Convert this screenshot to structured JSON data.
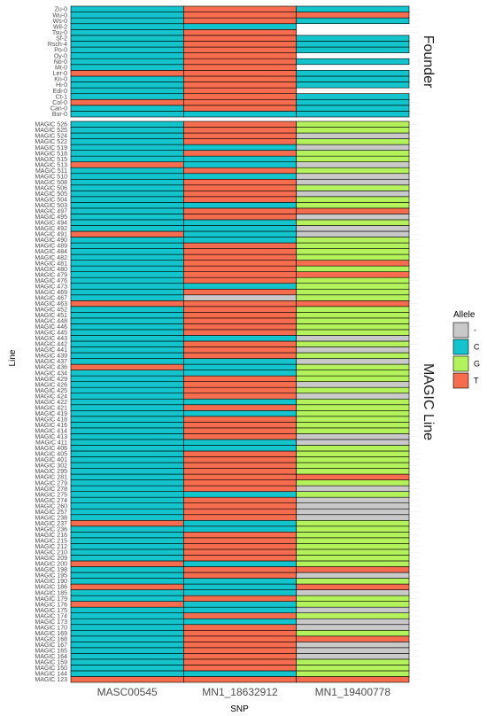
{
  "chart_data": {
    "type": "heatmap",
    "xlabel": "SNP",
    "ylabel": "Line",
    "columns": [
      "MASC00545",
      "MN1_18632912",
      "MN1_19400778"
    ],
    "legend": {
      "title": "Allele",
      "position": "right",
      "entries": [
        {
          "label": "-",
          "color": "#c9c9c9"
        },
        {
          "label": "C",
          "color": "#14c4cc"
        },
        {
          "label": "G",
          "color": "#b4f25c"
        },
        {
          "label": "T",
          "color": "#f56c4e"
        }
      ]
    },
    "panels": [
      {
        "name": "Founder",
        "rows": [
          "Bur-0",
          "Can-0",
          "Col-0",
          "Ct-1",
          "Edi-0",
          "Hi-0",
          "Kn-0",
          "Ler-0",
          "Mt-0",
          "No-0",
          "Oy-0",
          "Po-0",
          "Rsch-4",
          "Sf-2",
          "Tsu-0",
          "Wil-2",
          "Ws-0",
          "Wu-0",
          "Zu-0"
        ],
        "cells": [
          [
            "C",
            "C",
            "C"
          ],
          [
            "C",
            "T",
            "C"
          ],
          [
            "T",
            "T",
            "C"
          ],
          [
            "C",
            "T",
            "C"
          ],
          [
            "C",
            "T",
            ""
          ],
          [
            "C",
            "T",
            "C"
          ],
          [
            "C",
            "T",
            "C"
          ],
          [
            "T",
            "T",
            "C"
          ],
          [
            "C",
            "T",
            ""
          ],
          [
            "C",
            "T",
            "C"
          ],
          [
            "C",
            "T",
            ""
          ],
          [
            "C",
            "T",
            "C"
          ],
          [
            "C",
            "T",
            "C"
          ],
          [
            "C",
            "T",
            "C"
          ],
          [
            "C",
            "T",
            ""
          ],
          [
            "C",
            "C",
            ""
          ],
          [
            "C",
            "T",
            "C"
          ],
          [
            "C",
            "T",
            "T"
          ],
          [
            "C",
            "T",
            "C"
          ]
        ]
      },
      {
        "name": "MAGIC Line",
        "rows": [
          "MAGIC 123",
          "MAGIC 144",
          "MAGIC 150",
          "MAGIC 159",
          "MAGIC 164",
          "MAGIC 165",
          "MAGIC 167",
          "MAGIC 168",
          "MAGIC 169",
          "MAGIC 170",
          "MAGIC 173",
          "MAGIC 174",
          "MAGIC 175",
          "MAGIC 176",
          "MAGIC 179",
          "MAGIC 185",
          "MAGIC 186",
          "MAGIC 190",
          "MAGIC 195",
          "MAGIC 198",
          "MAGIC 200",
          "MAGIC 209",
          "MAGIC 210",
          "MAGIC 212",
          "MAGIC 215",
          "MAGIC 216",
          "MAGIC 236",
          "MAGIC 237",
          "MAGIC 238",
          "MAGIC 257",
          "MAGIC 260",
          "MAGIC 274",
          "MAGIC 275",
          "MAGIC 278",
          "MAGIC 279",
          "MAGIC 281",
          "MAGIC 295",
          "MAGIC 302",
          "MAGIC 401",
          "MAGIC 405",
          "MAGIC 406",
          "MAGIC 411",
          "MAGIC 413",
          "MAGIC 414",
          "MAGIC 416",
          "MAGIC 418",
          "MAGIC 419",
          "MAGIC 421",
          "MAGIC 422",
          "MAGIC 424",
          "MAGIC 425",
          "MAGIC 426",
          "MAGIC 429",
          "MAGIC 434",
          "MAGIC 436",
          "MAGIC 437",
          "MAGIC 439",
          "MAGIC 441",
          "MAGIC 442",
          "MAGIC 443",
          "MAGIC 445",
          "MAGIC 446",
          "MAGIC 448",
          "MAGIC 451",
          "MAGIC 452",
          "MAGIC 463",
          "MAGIC 467",
          "MAGIC 469",
          "MAGIC 473",
          "MAGIC 476",
          "MAGIC 479",
          "MAGIC 480",
          "MAGIC 481",
          "MAGIC 482",
          "MAGIC 484",
          "MAGIC 489",
          "MAGIC 490",
          "MAGIC 491",
          "MAGIC 492",
          "MAGIC 494",
          "MAGIC 495",
          "MAGIC 497",
          "MAGIC 503",
          "MAGIC 504",
          "MAGIC 505",
          "MAGIC 506",
          "MAGIC 508",
          "MAGIC 510",
          "MAGIC 511",
          "MAGIC 513",
          "MAGIC 515",
          "MAGIC 518",
          "MAGIC 519",
          "MAGIC 522",
          "MAGIC 524",
          "MAGIC 525",
          "MAGIC 526"
        ],
        "cells": [
          [
            "T",
            "T",
            "T"
          ],
          [
            "C",
            "C",
            "G"
          ],
          [
            "C",
            "T",
            "G"
          ],
          [
            "C",
            "T",
            "G"
          ],
          [
            "C",
            "T",
            "-"
          ],
          [
            "C",
            "T",
            "-"
          ],
          [
            "C",
            "T",
            "-"
          ],
          [
            "C",
            "T",
            "T"
          ],
          [
            "C",
            "T",
            "G"
          ],
          [
            "C",
            "T",
            "-"
          ],
          [
            "C",
            "C",
            "-"
          ],
          [
            "C",
            "T",
            "G"
          ],
          [
            "C",
            "C",
            "-"
          ],
          [
            "T",
            "C",
            "G"
          ],
          [
            "C",
            "T",
            "G"
          ],
          [
            "C",
            "C",
            "-"
          ],
          [
            "T",
            "C",
            "T"
          ],
          [
            "C",
            "C",
            "G"
          ],
          [
            "C",
            "T",
            "-"
          ],
          [
            "C",
            "T",
            "T"
          ],
          [
            "T",
            "C",
            "G"
          ],
          [
            "C",
            "T",
            "G"
          ],
          [
            "C",
            "T",
            "G"
          ],
          [
            "C",
            "T",
            "G"
          ],
          [
            "C",
            "T",
            "G"
          ],
          [
            "C",
            "T",
            "G"
          ],
          [
            "C",
            "C",
            "G"
          ],
          [
            "T",
            "C",
            "G"
          ],
          [
            "C",
            "T",
            "-"
          ],
          [
            "C",
            "T",
            "-"
          ],
          [
            "C",
            "T",
            "-"
          ],
          [
            "C",
            "T",
            "-"
          ],
          [
            "C",
            "C",
            "G"
          ],
          [
            "C",
            "T",
            "-"
          ],
          [
            "C",
            "T",
            "G"
          ],
          [
            "C",
            "T",
            "T"
          ],
          [
            "C",
            "T",
            "G"
          ],
          [
            "C",
            "T",
            "G"
          ],
          [
            "C",
            "T",
            "G"
          ],
          [
            "C",
            "T",
            "G"
          ],
          [
            "C",
            "C",
            "G"
          ],
          [
            "C",
            "C",
            "-"
          ],
          [
            "C",
            "T",
            "-"
          ],
          [
            "C",
            "T",
            "G"
          ],
          [
            "C",
            "T",
            "G"
          ],
          [
            "C",
            "T",
            "G"
          ],
          [
            "C",
            "C",
            "G"
          ],
          [
            "C",
            "T",
            "G"
          ],
          [
            "C",
            "C",
            "G"
          ],
          [
            "C",
            "T",
            "-"
          ],
          [
            "C",
            "T",
            "G"
          ],
          [
            "C",
            "T",
            "-"
          ],
          [
            "C",
            "T",
            "G"
          ],
          [
            "C",
            "C",
            "G"
          ],
          [
            "T",
            "C",
            "G"
          ],
          [
            "C",
            "C",
            "-"
          ],
          [
            "C",
            "T",
            "G"
          ],
          [
            "C",
            "T",
            "-"
          ],
          [
            "C",
            "T",
            "G"
          ],
          [
            "C",
            "C",
            "-"
          ],
          [
            "C",
            "T",
            "G"
          ],
          [
            "C",
            "T",
            "G"
          ],
          [
            "C",
            "T",
            "G"
          ],
          [
            "C",
            "T",
            "G"
          ],
          [
            "C",
            "T",
            "G"
          ],
          [
            "T",
            "T",
            "T"
          ],
          [
            "C",
            "-",
            "G"
          ],
          [
            "C",
            "T",
            "G"
          ],
          [
            "C",
            "C",
            "G"
          ],
          [
            "C",
            "T",
            "G"
          ],
          [
            "C",
            "T",
            "T"
          ],
          [
            "C",
            "T",
            "G"
          ],
          [
            "C",
            "T",
            "T"
          ],
          [
            "C",
            "T",
            "G"
          ],
          [
            "C",
            "T",
            "G"
          ],
          [
            "C",
            "T",
            "G"
          ],
          [
            "C",
            "C",
            "G"
          ],
          [
            "T",
            "C",
            "-"
          ],
          [
            "C",
            "C",
            "-"
          ],
          [
            "C",
            "C",
            "G"
          ],
          [
            "C",
            "T",
            "-"
          ],
          [
            "C",
            "T",
            "T"
          ],
          [
            "C",
            "C",
            "G"
          ],
          [
            "C",
            "T",
            "G"
          ],
          [
            "C",
            "T",
            "-"
          ],
          [
            "C",
            "T",
            "G"
          ],
          [
            "C",
            "T",
            "-"
          ],
          [
            "C",
            "C",
            "-"
          ],
          [
            "C",
            "T",
            "G"
          ],
          [
            "T",
            "C",
            "-"
          ],
          [
            "C",
            "C",
            "G"
          ],
          [
            "C",
            "T",
            "G"
          ],
          [
            "C",
            "C",
            "-"
          ],
          [
            "C",
            "T",
            "G"
          ],
          [
            "C",
            "T",
            "-"
          ],
          [
            "C",
            "T",
            "G"
          ],
          [
            "C",
            "T",
            "G"
          ]
        ]
      }
    ]
  }
}
